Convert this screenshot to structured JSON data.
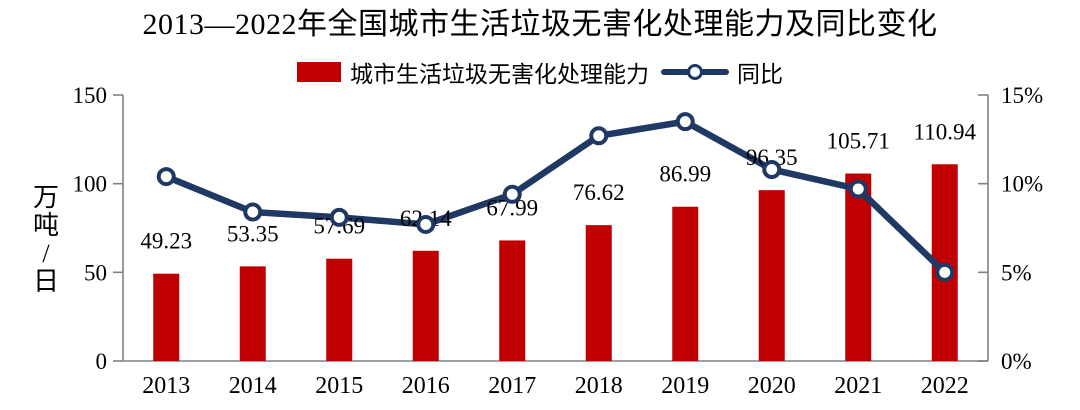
{
  "title": "2013—2022年全国城市生活垃圾无害化处理能力及同比变化",
  "legend": {
    "bar": {
      "label": "城市生活垃圾无害化处理能力",
      "color": "#c00000"
    },
    "line": {
      "label": "同比",
      "color": "#1f3864"
    }
  },
  "left_axis": {
    "label": "万吨/日",
    "ticks": [
      "0",
      "50",
      "100",
      "150"
    ],
    "tick_values": [
      0,
      50,
      100,
      150
    ]
  },
  "right_axis": {
    "ticks": [
      "0%",
      "5%",
      "10%",
      "15%"
    ],
    "tick_values": [
      0,
      5,
      10,
      15
    ]
  },
  "colors": {
    "bar": "#c00000",
    "line": "#1f3864",
    "marker_fill": "#ffffff",
    "axis": "#808080",
    "text": "#000000"
  },
  "chart_data": {
    "type": "bar+line",
    "title": "2013—2022年全国城市生活垃圾无害化处理能力及同比变化",
    "categories": [
      "2013",
      "2014",
      "2015",
      "2016",
      "2017",
      "2018",
      "2019",
      "2020",
      "2021",
      "2022"
    ],
    "series": [
      {
        "name": "城市生活垃圾无害化处理能力",
        "type": "bar",
        "axis": "left",
        "unit": "万吨/日",
        "color": "#c00000",
        "values": [
          49.23,
          53.35,
          57.69,
          62.14,
          67.99,
          76.62,
          86.99,
          96.35,
          105.71,
          110.94
        ],
        "labels": [
          "49.23",
          "53.35",
          "57.69",
          "62.14",
          "67.99",
          "76.62",
          "86.99",
          "96.35",
          "105.71",
          "110.94"
        ]
      },
      {
        "name": "同比",
        "type": "line",
        "axis": "right",
        "unit": "%",
        "color": "#1f3864",
        "values": [
          10.4,
          8.4,
          8.1,
          7.7,
          9.4,
          12.7,
          13.5,
          10.8,
          9.7,
          5.0
        ]
      }
    ],
    "ylabel_left": "万吨/日",
    "ylim_left": [
      0,
      150
    ],
    "ylim_right": [
      0,
      15
    ],
    "grid": false,
    "legend_position": "top"
  }
}
